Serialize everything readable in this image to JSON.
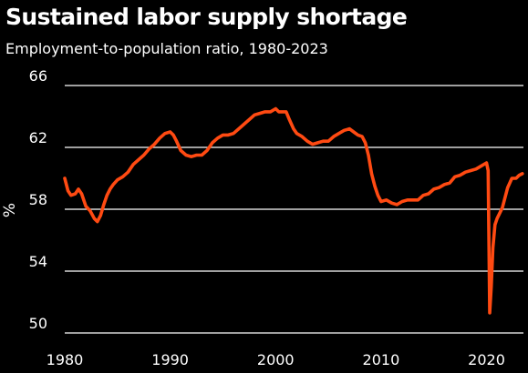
{
  "chart_data": {
    "type": "line",
    "title": "Sustained labor supply shortage",
    "subtitle": "Employment-to-population ratio, 1980-2023",
    "xlabel": "",
    "ylabel": "%",
    "xlim": [
      1980,
      2023.5
    ],
    "ylim": [
      50,
      66
    ],
    "x_ticks": [
      1980,
      1990,
      2000,
      2010,
      2020
    ],
    "y_ticks": [
      50,
      54,
      58,
      62,
      66
    ],
    "grid": "horizontal",
    "series": [
      {
        "color": "#ff4a12",
        "points": [
          [
            1980.0,
            60.0
          ],
          [
            1980.3,
            59.2
          ],
          [
            1980.6,
            58.9
          ],
          [
            1981.0,
            59.0
          ],
          [
            1981.3,
            59.3
          ],
          [
            1981.6,
            59.0
          ],
          [
            1982.0,
            58.2
          ],
          [
            1982.4,
            57.9
          ],
          [
            1982.8,
            57.4
          ],
          [
            1983.1,
            57.2
          ],
          [
            1983.4,
            57.6
          ],
          [
            1983.7,
            58.3
          ],
          [
            1984.0,
            58.9
          ],
          [
            1984.3,
            59.3
          ],
          [
            1984.6,
            59.6
          ],
          [
            1985.0,
            59.9
          ],
          [
            1985.5,
            60.1
          ],
          [
            1986.0,
            60.4
          ],
          [
            1986.5,
            60.9
          ],
          [
            1987.0,
            61.2
          ],
          [
            1987.5,
            61.5
          ],
          [
            1988.0,
            61.9
          ],
          [
            1988.5,
            62.2
          ],
          [
            1989.0,
            62.6
          ],
          [
            1989.5,
            62.9
          ],
          [
            1990.0,
            63.0
          ],
          [
            1990.3,
            62.8
          ],
          [
            1990.6,
            62.4
          ],
          [
            1991.0,
            61.8
          ],
          [
            1991.5,
            61.5
          ],
          [
            1992.0,
            61.4
          ],
          [
            1992.5,
            61.5
          ],
          [
            1993.0,
            61.5
          ],
          [
            1993.5,
            61.8
          ],
          [
            1994.0,
            62.3
          ],
          [
            1994.5,
            62.6
          ],
          [
            1995.0,
            62.8
          ],
          [
            1995.5,
            62.8
          ],
          [
            1996.0,
            62.9
          ],
          [
            1996.5,
            63.2
          ],
          [
            1997.0,
            63.5
          ],
          [
            1997.5,
            63.8
          ],
          [
            1998.0,
            64.1
          ],
          [
            1998.5,
            64.2
          ],
          [
            1999.0,
            64.3
          ],
          [
            1999.5,
            64.3
          ],
          [
            2000.0,
            64.5
          ],
          [
            2000.3,
            64.3
          ],
          [
            2000.7,
            64.3
          ],
          [
            2001.0,
            64.3
          ],
          [
            2001.3,
            63.8
          ],
          [
            2001.7,
            63.2
          ],
          [
            2002.0,
            62.9
          ],
          [
            2002.5,
            62.7
          ],
          [
            2003.0,
            62.4
          ],
          [
            2003.5,
            62.2
          ],
          [
            2004.0,
            62.3
          ],
          [
            2004.5,
            62.4
          ],
          [
            2005.0,
            62.4
          ],
          [
            2005.5,
            62.7
          ],
          [
            2006.0,
            62.9
          ],
          [
            2006.5,
            63.1
          ],
          [
            2007.0,
            63.2
          ],
          [
            2007.4,
            63.0
          ],
          [
            2007.8,
            62.8
          ],
          [
            2008.2,
            62.7
          ],
          [
            2008.5,
            62.3
          ],
          [
            2008.8,
            61.5
          ],
          [
            2009.1,
            60.3
          ],
          [
            2009.4,
            59.5
          ],
          [
            2009.7,
            58.9
          ],
          [
            2010.0,
            58.5
          ],
          [
            2010.5,
            58.6
          ],
          [
            2011.0,
            58.4
          ],
          [
            2011.5,
            58.3
          ],
          [
            2012.0,
            58.5
          ],
          [
            2012.5,
            58.6
          ],
          [
            2013.0,
            58.6
          ],
          [
            2013.5,
            58.6
          ],
          [
            2014.0,
            58.9
          ],
          [
            2014.5,
            59.0
          ],
          [
            2015.0,
            59.3
          ],
          [
            2015.5,
            59.4
          ],
          [
            2016.0,
            59.6
          ],
          [
            2016.5,
            59.7
          ],
          [
            2017.0,
            60.1
          ],
          [
            2017.5,
            60.2
          ],
          [
            2018.0,
            60.4
          ],
          [
            2018.5,
            60.5
          ],
          [
            2019.0,
            60.6
          ],
          [
            2019.5,
            60.8
          ],
          [
            2020.0,
            61.0
          ],
          [
            2020.15,
            60.5
          ],
          [
            2020.3,
            51.3
          ],
          [
            2020.45,
            53.0
          ],
          [
            2020.6,
            55.5
          ],
          [
            2020.8,
            57.0
          ],
          [
            2021.0,
            57.4
          ],
          [
            2021.5,
            58.1
          ],
          [
            2022.0,
            59.4
          ],
          [
            2022.4,
            60.0
          ],
          [
            2022.8,
            60.0
          ],
          [
            2023.1,
            60.2
          ],
          [
            2023.4,
            60.3
          ]
        ]
      }
    ]
  }
}
